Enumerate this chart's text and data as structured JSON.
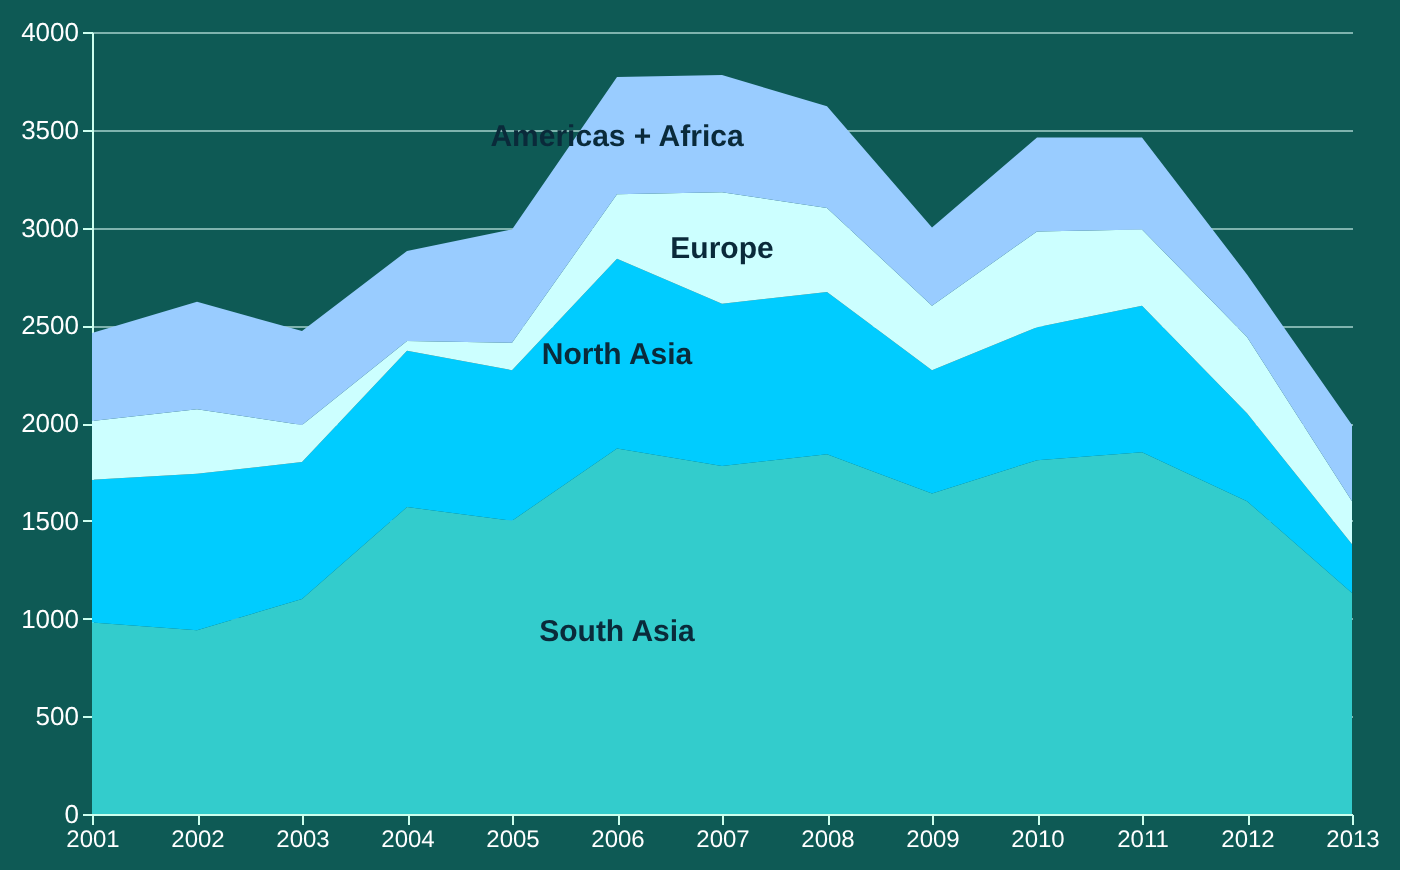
{
  "chart_data": {
    "type": "area",
    "stacked": true,
    "categories": [
      "2001",
      "2002",
      "2003",
      "2004",
      "2005",
      "2006",
      "2007",
      "2008",
      "2009",
      "2010",
      "2011",
      "2012",
      "2013"
    ],
    "series": [
      {
        "name": "South Asia",
        "color": "#33cccc",
        "values": [
          980,
          940,
          1100,
          1570,
          1500,
          1870,
          1780,
          1840,
          1640,
          1810,
          1850,
          1600,
          1130
        ]
      },
      {
        "name": "North Asia",
        "color": "#00ccff",
        "values": [
          730,
          800,
          700,
          800,
          770,
          970,
          830,
          830,
          630,
          680,
          750,
          450,
          250
        ]
      },
      {
        "name": "Europe",
        "color": "#ccffff",
        "values": [
          300,
          330,
          190,
          50,
          140,
          330,
          570,
          430,
          330,
          490,
          390,
          390,
          220
        ]
      },
      {
        "name": "Americas + Africa",
        "color": "#99ccff",
        "values": [
          450,
          550,
          480,
          460,
          580,
          600,
          600,
          520,
          400,
          480,
          470,
          320,
          390
        ]
      }
    ],
    "ylim": [
      0,
      4000
    ],
    "yticks": [
      0,
      500,
      1000,
      1500,
      2000,
      2500,
      3000,
      3500,
      4000
    ],
    "grid": "y",
    "legend": false
  }
}
